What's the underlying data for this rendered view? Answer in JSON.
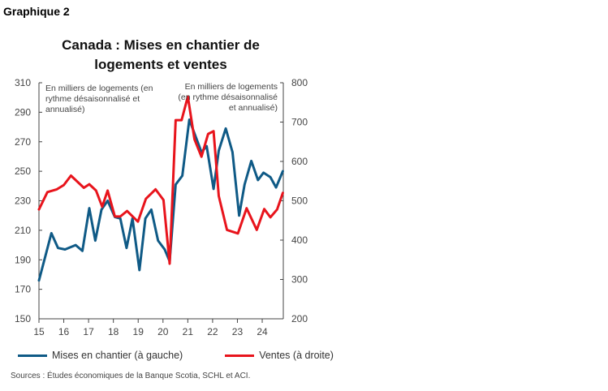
{
  "header": "Graphique 2",
  "chart_data": {
    "type": "line",
    "title": "Canada : Mises en chantier de logements et ventes",
    "y_left_label": "En milliers de logements (en rythme désaisonnalisé et annualisé)",
    "y_right_label": "En milliers de logements (en rythme désaisonnalisé et annualisé)",
    "y_left_lim": [
      150,
      310
    ],
    "y_left_ticks": [
      "150",
      "170",
      "190",
      "210",
      "230",
      "250",
      "270",
      "290",
      "310"
    ],
    "y_right_lim": [
      200,
      800
    ],
    "y_right_ticks": [
      "200",
      "300",
      "400",
      "500",
      "600",
      "700",
      "800"
    ],
    "x_lim": [
      15,
      24.85
    ],
    "x_ticks": [
      "15",
      "16",
      "17",
      "18",
      "19",
      "20",
      "21",
      "22",
      "23",
      "24"
    ],
    "grid": false,
    "legend_position": "bottom",
    "series": [
      {
        "name": "Mises en chantier (à gauche)",
        "axis": "left",
        "color": "#0f5a86",
        "x": [
          15.0,
          15.5,
          15.77,
          16.05,
          16.48,
          16.75,
          17.03,
          17.27,
          17.52,
          17.77,
          18.06,
          18.28,
          18.53,
          18.77,
          19.05,
          19.29,
          19.53,
          19.8,
          20.07,
          20.27,
          20.51,
          20.78,
          21.06,
          21.55,
          21.76,
          22.04,
          22.25,
          22.53,
          22.8,
          23.07,
          23.29,
          23.56,
          23.83,
          24.05,
          24.33,
          24.56,
          24.83
        ],
        "values": [
          176,
          208,
          198,
          197,
          200,
          196,
          225,
          203,
          224,
          230,
          219,
          218,
          198,
          218,
          183,
          218,
          224,
          203,
          197,
          189,
          241,
          247,
          285,
          263,
          267,
          238,
          264,
          279,
          263,
          220,
          241,
          257,
          244,
          249,
          246,
          239,
          250
        ]
      },
      {
        "name": "Ventes (à droite)",
        "axis": "right",
        "color": "#e8141c",
        "x": [
          15.0,
          15.34,
          15.72,
          16.0,
          16.29,
          16.81,
          17.03,
          17.3,
          17.55,
          17.77,
          18.06,
          18.28,
          18.55,
          18.99,
          19.31,
          19.7,
          20.02,
          20.27,
          20.51,
          20.75,
          21.0,
          21.27,
          21.55,
          21.82,
          22.04,
          22.25,
          22.58,
          23.02,
          23.37,
          23.78,
          24.08,
          24.33,
          24.6,
          24.83
        ],
        "values": [
          478,
          522,
          529,
          540,
          564,
          533,
          542,
          526,
          485,
          526,
          460,
          460,
          474,
          447,
          505,
          529,
          502,
          340,
          705,
          705,
          765,
          656,
          612,
          670,
          677,
          512,
          426,
          417,
          481,
          426,
          479,
          458,
          478,
          520
        ]
      }
    ]
  },
  "source": "Sources : Études économiques de la Banque Scotia, SCHL et ACI."
}
